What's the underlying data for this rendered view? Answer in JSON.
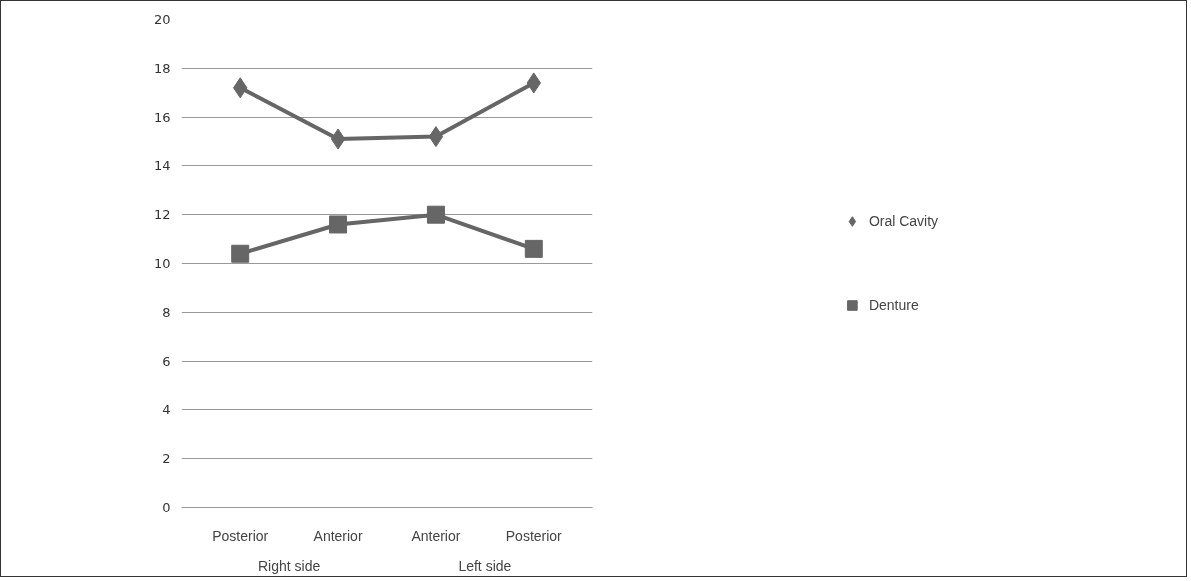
{
  "chart_data": {
    "type": "line",
    "categories": [
      "Posterior",
      "Anterior",
      "Anterior",
      "Posterior"
    ],
    "series": [
      {
        "name": "Oral Cavity",
        "color": "#666666",
        "values": [
          17.2,
          15.1,
          15.2,
          17.4
        ],
        "marker": "diamond"
      },
      {
        "name": "Denture",
        "color": "#666666",
        "values": [
          10.4,
          11.6,
          12.0,
          10.6
        ],
        "marker": "square"
      }
    ],
    "annotations": [
      "Right side",
      "Left side"
    ],
    "ylim": [
      0,
      20
    ],
    "yticks": [
      0,
      2,
      4,
      6,
      8,
      10,
      12,
      14,
      16,
      18,
      20
    ],
    "grid": "y",
    "legend": "right",
    "line_style": "solid"
  }
}
